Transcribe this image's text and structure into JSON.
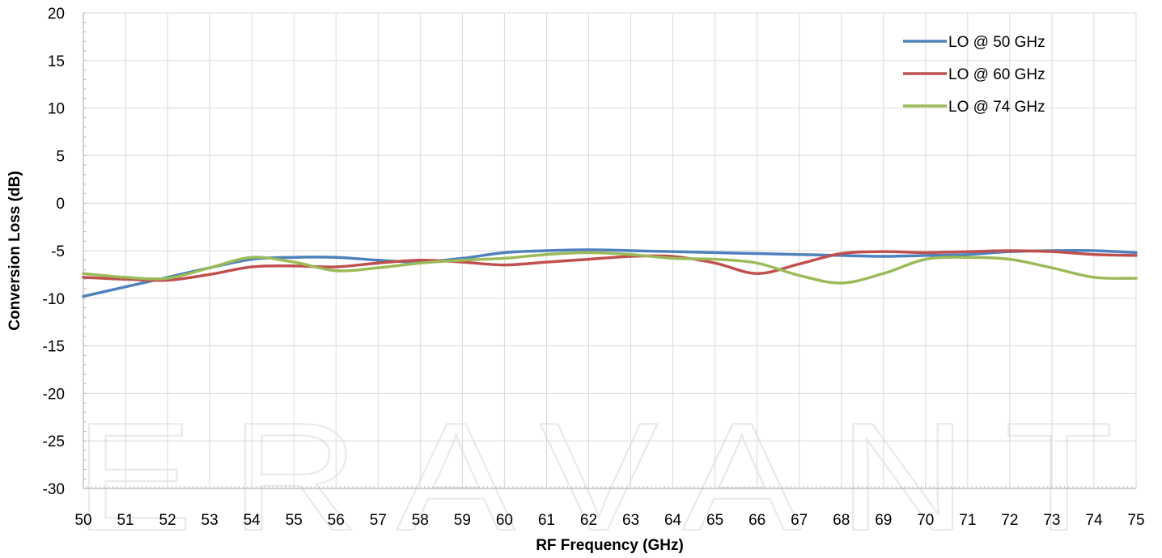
{
  "chart_data": {
    "type": "line",
    "title": "",
    "xlabel": "RF Frequency (GHz)",
    "ylabel": "Conversion Loss (dB)",
    "xlim": [
      50,
      75
    ],
    "ylim": [
      -30,
      20
    ],
    "x_ticks": [
      50,
      51,
      52,
      53,
      54,
      55,
      56,
      57,
      58,
      59,
      60,
      61,
      62,
      63,
      64,
      65,
      66,
      67,
      68,
      69,
      70,
      71,
      72,
      73,
      74,
      75
    ],
    "y_ticks": [
      20,
      15,
      10,
      5,
      0,
      -5,
      -10,
      -15,
      -20,
      -25,
      -30
    ],
    "grid": true,
    "legend_position": "top-right",
    "watermark": "ERAVANT",
    "x": [
      50,
      51,
      52,
      53,
      54,
      55,
      56,
      57,
      58,
      59,
      60,
      61,
      62,
      63,
      64,
      65,
      66,
      67,
      68,
      69,
      70,
      71,
      72,
      73,
      74,
      75
    ],
    "series": [
      {
        "name": "LO @ 50 GHz",
        "color": "#4f81bd",
        "values": [
          -9.8,
          -8.8,
          -7.8,
          -6.8,
          -5.9,
          -5.7,
          -5.7,
          -6.0,
          -6.2,
          -5.8,
          -5.2,
          -5.0,
          -4.9,
          -5.0,
          -5.1,
          -5.2,
          -5.3,
          -5.4,
          -5.5,
          -5.6,
          -5.5,
          -5.4,
          -5.1,
          -5.0,
          -5.0,
          -5.2
        ]
      },
      {
        "name": "LO @ 60 GHz",
        "color": "#c0504d",
        "values": [
          -7.8,
          -8.0,
          -8.1,
          -7.5,
          -6.7,
          -6.6,
          -6.7,
          -6.3,
          -6.0,
          -6.2,
          -6.5,
          -6.2,
          -5.9,
          -5.6,
          -5.6,
          -6.3,
          -7.4,
          -6.4,
          -5.3,
          -5.1,
          -5.2,
          -5.1,
          -5.0,
          -5.1,
          -5.4,
          -5.5
        ]
      },
      {
        "name": "LO @ 74 GHz",
        "color": "#9bbb59",
        "values": [
          -7.4,
          -7.8,
          -7.9,
          -6.8,
          -5.7,
          -6.2,
          -7.1,
          -6.8,
          -6.3,
          -6.0,
          -5.8,
          -5.4,
          -5.2,
          -5.4,
          -5.8,
          -5.9,
          -6.3,
          -7.6,
          -8.4,
          -7.4,
          -5.9,
          -5.7,
          -5.9,
          -6.8,
          -7.8,
          -7.9
        ]
      }
    ]
  }
}
